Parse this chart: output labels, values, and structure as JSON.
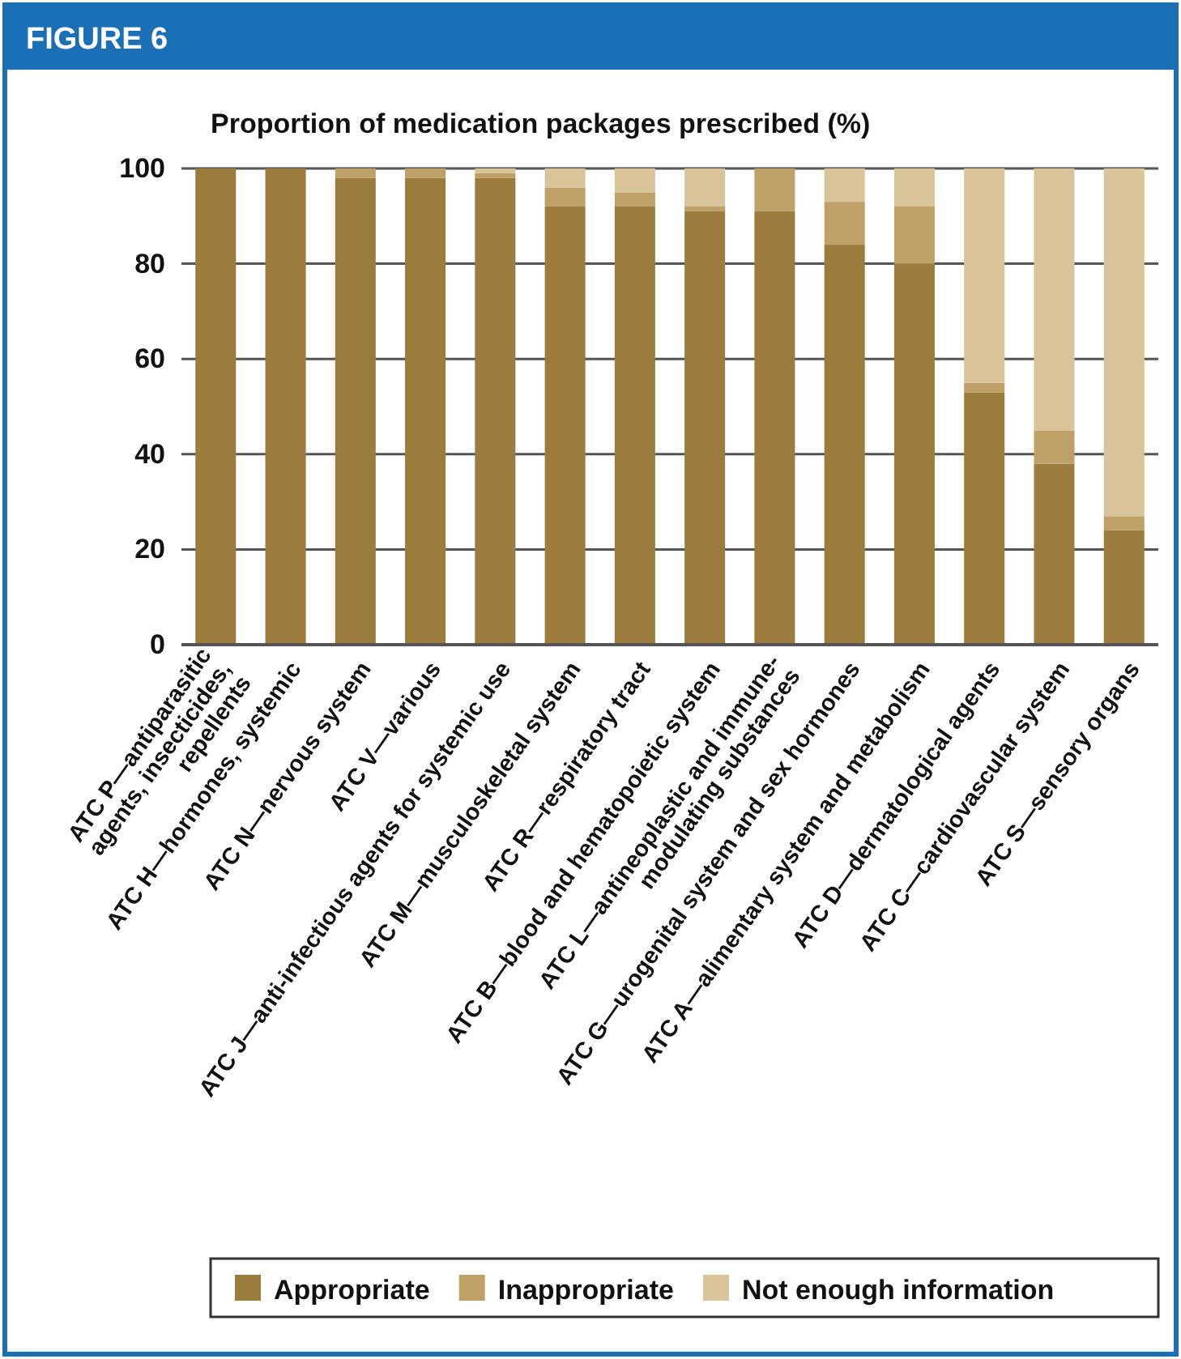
{
  "chart_data": {
    "type": "bar",
    "title": "FIGURE 6",
    "ylabel": "Proportion of medication packages prescribed (%)",
    "categories": [
      "ATC P—antiparasitic\nagents, insecticides,\nrepellents",
      "ATC H—hormones, systemic",
      "ATC N—nervous system",
      "ATC V—various",
      "ATC J—anti-infectious agents for systemic use",
      "ATC M—musculoskeletal system",
      "ATC R—respiratory tract",
      "ATC B—blood and hematopoietic system",
      "ATC L—antineoplastic and immune-\nmodulating substances",
      "ATC G—urogenital system and sex hormones",
      "ATC A—alimentary system and metabolism",
      "ATC D—dermatological agents",
      "ATC C—cardiovascular system",
      "ATC S—sensory organs"
    ],
    "series": [
      {
        "name": "Appropriate",
        "color": "#9c7c3c",
        "values": [
          100,
          100,
          98,
          98,
          98,
          92,
          92,
          91,
          91,
          84,
          80,
          53,
          38,
          24
        ]
      },
      {
        "name": "Inappropriate",
        "color": "#bfa168",
        "values": [
          0,
          0,
          2,
          2,
          1,
          4,
          3,
          1,
          9,
          9,
          12,
          2,
          7,
          3
        ]
      },
      {
        "name": "Not enough information",
        "color": "#d9c49a",
        "values": [
          0,
          0,
          0,
          0,
          1,
          4,
          5,
          8,
          0,
          7,
          8,
          45,
          55,
          73
        ]
      }
    ],
    "stacked": true,
    "ylim": [
      0,
      100
    ],
    "yticks": [
      0,
      20,
      40,
      60,
      80,
      100
    ],
    "grid": "y",
    "legend": "bottom"
  }
}
